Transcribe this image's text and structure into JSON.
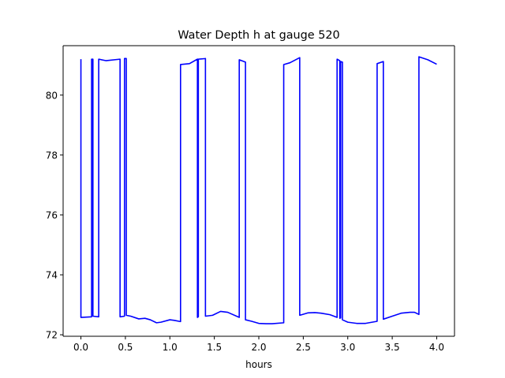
{
  "chart_data": {
    "type": "line",
    "title": "Water Depth h at gauge 520",
    "xlabel": "hours",
    "ylabel": "",
    "xlim": [
      -0.2,
      4.2
    ],
    "ylim": [
      71.95,
      81.65
    ],
    "xticks": [
      0.0,
      0.5,
      1.0,
      1.5,
      2.0,
      2.5,
      3.0,
      3.5,
      4.0
    ],
    "xtick_labels": [
      "0.0",
      "0.5",
      "1.0",
      "1.5",
      "2.0",
      "2.5",
      "3.0",
      "3.5",
      "4.0"
    ],
    "yticks": [
      72,
      74,
      76,
      78,
      80
    ],
    "ytick_labels": [
      "72",
      "74",
      "76",
      "78",
      "80"
    ],
    "grid": false,
    "series": [
      {
        "color": "#0000ff",
        "points": [
          [
            0.0,
            81.2
          ],
          [
            0.0,
            72.58
          ],
          [
            0.12,
            72.6
          ],
          [
            0.12,
            81.2
          ],
          [
            0.135,
            81.2
          ],
          [
            0.135,
            72.62
          ],
          [
            0.2,
            72.6
          ],
          [
            0.2,
            81.2
          ],
          [
            0.28,
            81.15
          ],
          [
            0.44,
            81.2
          ],
          [
            0.44,
            72.6
          ],
          [
            0.49,
            72.62
          ],
          [
            0.49,
            81.22
          ],
          [
            0.51,
            81.22
          ],
          [
            0.51,
            72.65
          ],
          [
            0.56,
            72.62
          ],
          [
            0.65,
            72.53
          ],
          [
            0.72,
            72.55
          ],
          [
            0.78,
            72.5
          ],
          [
            0.85,
            72.4
          ],
          [
            0.9,
            72.42
          ],
          [
            1.0,
            72.5
          ],
          [
            1.05,
            72.48
          ],
          [
            1.12,
            72.44
          ],
          [
            1.12,
            81.02
          ],
          [
            1.22,
            81.05
          ],
          [
            1.31,
            81.2
          ],
          [
            1.31,
            72.58
          ],
          [
            1.32,
            72.6
          ],
          [
            1.32,
            81.2
          ],
          [
            1.4,
            81.22
          ],
          [
            1.4,
            72.62
          ],
          [
            1.48,
            72.65
          ],
          [
            1.57,
            72.78
          ],
          [
            1.65,
            72.75
          ],
          [
            1.78,
            72.58
          ],
          [
            1.78,
            81.18
          ],
          [
            1.85,
            81.1
          ],
          [
            1.85,
            72.5
          ],
          [
            1.92,
            72.45
          ],
          [
            2.0,
            72.38
          ],
          [
            2.08,
            72.37
          ],
          [
            2.15,
            72.37
          ],
          [
            2.28,
            72.4
          ],
          [
            2.28,
            81.02
          ],
          [
            2.35,
            81.08
          ],
          [
            2.46,
            81.25
          ],
          [
            2.46,
            72.65
          ],
          [
            2.55,
            72.73
          ],
          [
            2.63,
            72.74
          ],
          [
            2.7,
            72.72
          ],
          [
            2.8,
            72.67
          ],
          [
            2.88,
            72.58
          ],
          [
            2.88,
            81.2
          ],
          [
            2.91,
            81.15
          ],
          [
            2.91,
            72.55
          ],
          [
            2.92,
            72.56
          ],
          [
            2.92,
            81.12
          ],
          [
            2.94,
            81.1
          ],
          [
            2.94,
            72.5
          ],
          [
            3.0,
            72.42
          ],
          [
            3.1,
            72.38
          ],
          [
            3.2,
            72.38
          ],
          [
            3.33,
            72.45
          ],
          [
            3.33,
            81.05
          ],
          [
            3.4,
            81.12
          ],
          [
            3.4,
            72.52
          ],
          [
            3.5,
            72.62
          ],
          [
            3.6,
            72.72
          ],
          [
            3.7,
            72.75
          ],
          [
            3.75,
            72.75
          ],
          [
            3.8,
            72.68
          ],
          [
            3.8,
            81.28
          ],
          [
            3.9,
            81.18
          ],
          [
            4.0,
            81.03
          ]
        ]
      }
    ]
  }
}
